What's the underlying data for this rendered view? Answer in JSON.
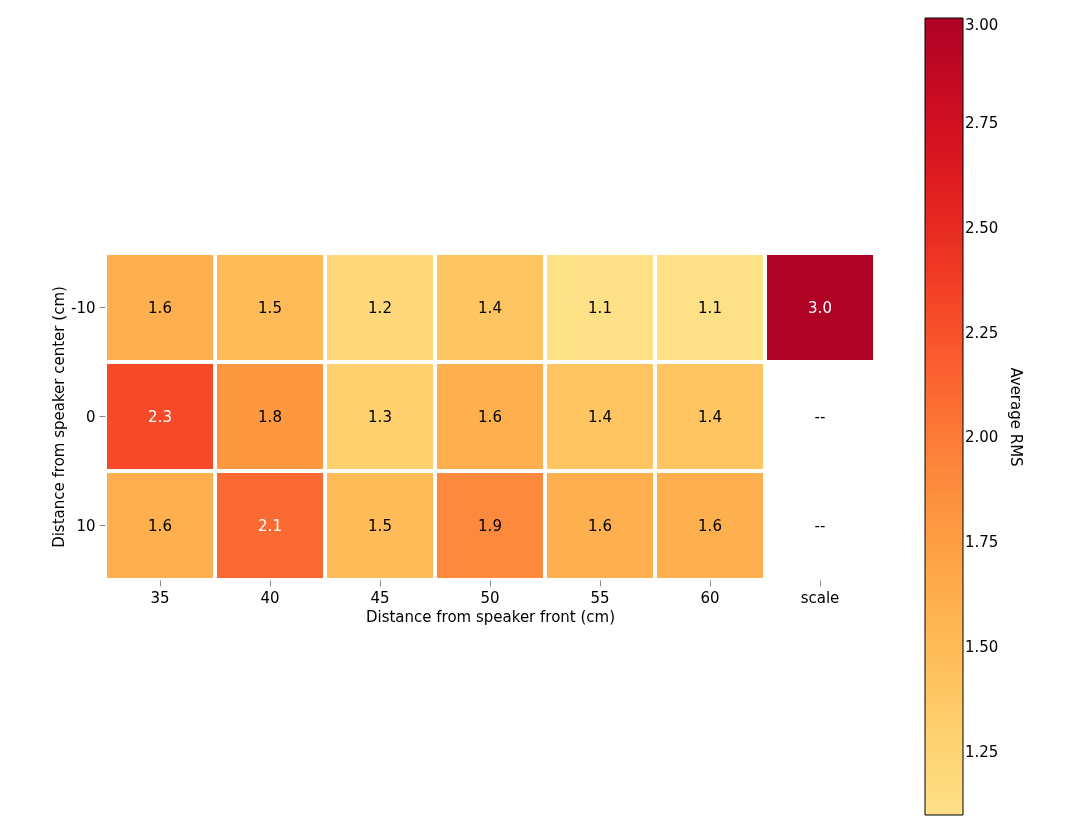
{
  "chart_data": {
    "type": "heatmap",
    "xlabel": "Distance from speaker front (cm)",
    "ylabel": "Distance from speaker center (cm)",
    "clabel": "Average RMS",
    "categories": [
      "35",
      "40",
      "45",
      "50",
      "55",
      "60",
      "scale"
    ],
    "y_categories": [
      "-10",
      "0",
      "10"
    ],
    "cells": [
      [
        1.6,
        1.5,
        1.2,
        1.4,
        1.1,
        1.1,
        3.0
      ],
      [
        2.3,
        1.8,
        1.3,
        1.6,
        1.4,
        1.4,
        null
      ],
      [
        1.6,
        2.1,
        1.5,
        1.9,
        1.6,
        1.6,
        null
      ]
    ],
    "cell_labels": [
      [
        "1.6",
        "1.5",
        "1.2",
        "1.4",
        "1.1",
        "1.1",
        "3.0"
      ],
      [
        "2.3",
        "1.8",
        "1.3",
        "1.6",
        "1.4",
        "1.4",
        "--"
      ],
      [
        "1.6",
        "2.1",
        "1.5",
        "1.9",
        "1.6",
        "1.6",
        "--"
      ]
    ],
    "clim": [
      1.1,
      3.0
    ],
    "cticks": [
      {
        "value": 1.25,
        "label": "1.25"
      },
      {
        "value": 1.5,
        "label": "1.50"
      },
      {
        "value": 1.75,
        "label": "1.75"
      },
      {
        "value": 2.0,
        "label": "2.00"
      },
      {
        "value": 2.25,
        "label": "2.25"
      },
      {
        "value": 2.5,
        "label": "2.50"
      },
      {
        "value": 2.75,
        "label": "2.75"
      },
      {
        "value": 3.0,
        "label": "3.00"
      }
    ]
  }
}
